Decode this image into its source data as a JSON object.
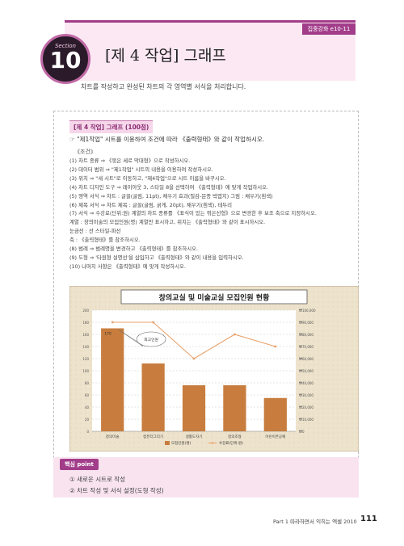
{
  "header": {
    "tab_label": "집중강화 e10-11",
    "section_word": "Section",
    "section_number": "10",
    "title": "[제 4 작업] 그래프",
    "subtitle": "차트를 작성하고 완성된 차트의 각 영역별 서식을 처리합니다."
  },
  "exercise": {
    "label": "[제 4 작업] 그래프 (100점)",
    "instruction": "☞ \"제1작업\" 시트를 이용하여 조건에 따라 《출력형태》와 같이 작업하시오.",
    "conditions_title": "《조건》",
    "conditions": [
      "(1) 차트 종류 ⇒ 《묶은 세로 막대형》으로 작성하시오.",
      "(2) 데이터 범위 ⇒ \"제1작업\" 시트의 내용을 이용하여 작성하시오.",
      "(3) 위치 ⇒ \"새 시트\"로 이동하고, \"제4작업\"으로 시트 이름을 바꾸시오.",
      "(4) 차트 디자인 도구 ⇒ 레이아웃 3, 스타일 8을 선택하여 《출력형태》에 맞게 작업하시오.",
      "(5) 영역 서식 ⇒ 차트 : 글꼴(굴림, 11pt), 채우기 효과(질감-문종 박엽지) 그림 : 채우기(흰색)",
      "(6) 제목 서식 ⇒ 차트 제목 : 글꼴(굴림, 굵게, 20pt), 채우기(흰색), 테두리",
      "(7) 서식 ⇒ 수강료(단위:원) 계열의 차트 종류를 《표식이 있는 꺾은선형》으로 변경한 후 보조 축으로 지정하시오.",
      "           계열 : 창의미술의 모집인원(명) 계열만 표시하고, 위치는 《출력형태》와 같이 표시하시오.",
      "           눈금선 : 선 스타일-파선",
      "           축 : 《출력형태》를 참조하시오.",
      "(8) 범례 ⇒ 범례명을 변경하고 《출력형태》를 참조하시오.",
      "(9) 도형 ⇒ '타원형 설명선'을 삽입하고 《출력형태》와 같이 내용을 입력하시오.",
      "(10) 나머지 사항은 《출력형태》에 맞게 작성하시오."
    ]
  },
  "chart_data": {
    "type": "bar",
    "title": "창의교실 및 미술교실 모집인원 현황",
    "categories": [
      "창의미술",
      "컴퓨터그리기",
      "생활도자기",
      "창의조형",
      "어린이폰공예"
    ],
    "series": [
      {
        "name": "모집인원(명)",
        "type": "bar",
        "axis": "primary",
        "color": "#c87d3e",
        "values": [
          170,
          112,
          76,
          76,
          55
        ]
      },
      {
        "name": "수강료(단위:원)",
        "type": "line",
        "axis": "secondary",
        "color": "#e8a16a",
        "values": [
          90000,
          90000,
          60000,
          80000,
          70000
        ]
      }
    ],
    "primary_ticks": [
      "0",
      "20",
      "40",
      "60",
      "80",
      "100",
      "120",
      "140",
      "160",
      "180",
      "200"
    ],
    "secondary_ticks": [
      "₩0",
      "₩10,000",
      "₩20,000",
      "₩30,000",
      "₩40,000",
      "₩50,000",
      "₩60,000",
      "₩70,000",
      "₩80,000",
      "₩90,000",
      "₩100,000"
    ],
    "ylim": [
      0,
      200
    ],
    "y2lim": [
      0,
      100000
    ],
    "bar_label": "170",
    "callout": "최고인원",
    "legend_position": "bottom",
    "gridlines": "dashed"
  },
  "key": {
    "tab_label": "핵심 point",
    "items": [
      "① 새로운 시트로 작성",
      "② 차트 작성 및 서식 설정(도형 작성)"
    ]
  },
  "footer": {
    "text": "Part 1 따라하면서 익히는 엑셀 2010",
    "page_number": "111"
  }
}
